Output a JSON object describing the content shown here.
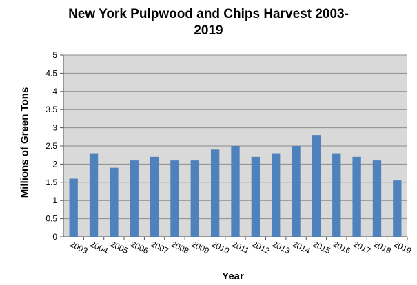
{
  "chart_data": {
    "type": "bar",
    "title_line1": "New York Pulpwood and Chips Harvest 2003-",
    "title_line2": "2019",
    "xlabel": "Year",
    "ylabel": "Millions of Green Tons",
    "ylim": [
      0,
      5
    ],
    "yticks": [
      "0",
      "0.5",
      "1",
      "1.5",
      "2",
      "2.5",
      "3",
      "3.5",
      "4",
      "4.5",
      "5"
    ],
    "grid": true,
    "categories": [
      "2003",
      "2004",
      "2005",
      "2006",
      "2007",
      "2008",
      "2009",
      "2010",
      "2011",
      "2012",
      "2013",
      "2014",
      "2015",
      "2016",
      "2017",
      "2018",
      "2019"
    ],
    "values": [
      1.6,
      2.3,
      1.9,
      2.1,
      2.2,
      2.1,
      2.1,
      2.4,
      2.5,
      2.2,
      2.3,
      2.5,
      2.8,
      2.3,
      2.2,
      2.1,
      1.55
    ],
    "colors": {
      "bar": "#4f81bd",
      "plot_bg": "#d9d9d9",
      "grid": "#8c8c8c"
    }
  }
}
